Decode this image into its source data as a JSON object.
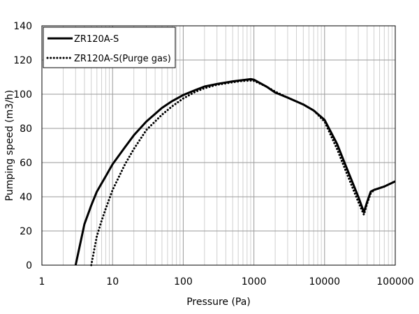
{
  "chart_data": {
    "type": "line",
    "xscale": "log",
    "xlim": [
      1,
      100000
    ],
    "ylim": [
      0,
      140
    ],
    "xticks": [
      1,
      10,
      100,
      1000,
      10000,
      100000
    ],
    "xtick_labels": [
      "1",
      "10",
      "100",
      "1000",
      "10000",
      "100000"
    ],
    "yticks": [
      0,
      20,
      40,
      60,
      80,
      100,
      120,
      140
    ],
    "ytick_labels": [
      "0",
      "20",
      "40",
      "60",
      "80",
      "100",
      "120",
      "140"
    ],
    "xlabel": "Pressure (Pa)",
    "ylabel": "Pumping speed (m3/h)",
    "grid": true,
    "legend_position": "top-left",
    "series": [
      {
        "name": "ZR120A-S",
        "style": "solid",
        "color": "#000000",
        "x": [
          3,
          4,
          5,
          6,
          8,
          10,
          15,
          20,
          30,
          50,
          70,
          100,
          150,
          200,
          300,
          500,
          700,
          900,
          1000,
          1500,
          2000,
          3000,
          5000,
          7000,
          10000,
          15000,
          20000,
          30000,
          36000,
          40000,
          45000,
          50000,
          70000,
          100000
        ],
        "y": [
          0,
          24,
          35,
          43,
          52,
          59,
          69,
          76,
          84,
          92,
          96,
          99.5,
          102.5,
          104.5,
          106,
          107.5,
          108.3,
          108.8,
          108.5,
          104.5,
          101,
          98,
          94,
          90.5,
          85,
          71,
          58,
          40,
          31,
          37,
          43,
          44,
          46,
          49
        ]
      },
      {
        "name": "ZR120A-S(Purge gas)",
        "style": "dotted",
        "color": "#000000",
        "x": [
          5,
          6,
          7,
          8,
          10,
          15,
          20,
          30,
          50,
          70,
          100,
          150,
          200,
          300,
          500,
          700,
          900,
          1000,
          1500,
          2000,
          3000,
          5000,
          7000,
          10000,
          15000,
          20000,
          30000,
          36000,
          40000,
          45000,
          50000,
          70000,
          100000
        ],
        "y": [
          0,
          17,
          26,
          33,
          44,
          59,
          68,
          79,
          88,
          93,
          97.5,
          101.5,
          103.5,
          105.5,
          107,
          107.8,
          108,
          107.8,
          104.5,
          101.5,
          98,
          94,
          90.5,
          84,
          68,
          55,
          37,
          29.5,
          36,
          42,
          44,
          46,
          49
        ]
      }
    ]
  }
}
